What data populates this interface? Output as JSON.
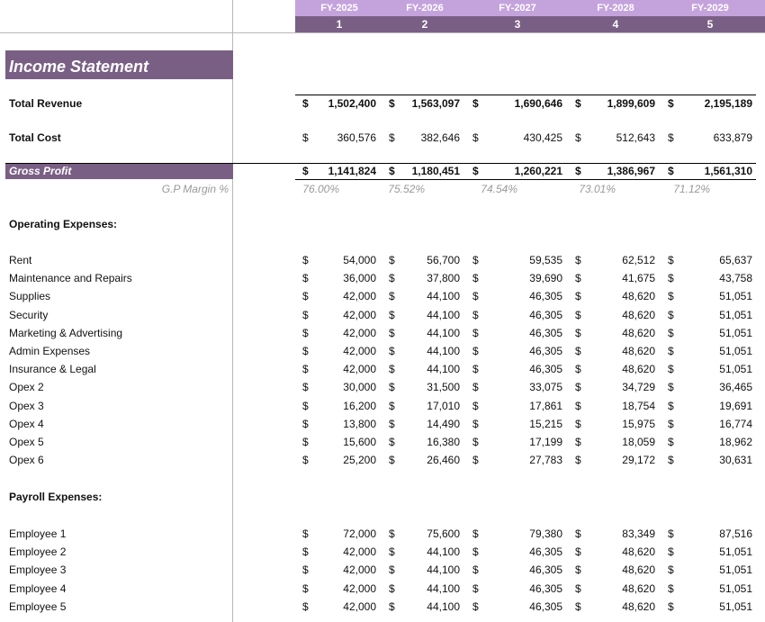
{
  "header": {
    "years": [
      "FY-2025",
      "FY-2026",
      "FY-2027",
      "FY-2028",
      "FY-2029"
    ],
    "periods": [
      "1",
      "2",
      "3",
      "4",
      "5"
    ]
  },
  "title": "Income Statement",
  "currency": "$",
  "total_revenue": {
    "label": "Total Revenue",
    "values": [
      "1,502,400",
      "1,563,097",
      "1,690,646",
      "1,899,609",
      "2,195,189"
    ]
  },
  "total_cost": {
    "label": "Total Cost",
    "values": [
      "360,576",
      "382,646",
      "430,425",
      "512,643",
      "633,879"
    ]
  },
  "gross_profit": {
    "label": "Gross Profit",
    "values": [
      "1,141,824",
      "1,180,451",
      "1,260,221",
      "1,386,967",
      "1,561,310"
    ]
  },
  "gp_margin": {
    "label": "G.P Margin %",
    "values": [
      "76.00%",
      "75.52%",
      "74.54%",
      "73.01%",
      "71.12%"
    ]
  },
  "operating_expenses": {
    "title": "Operating Expenses:",
    "rows": [
      {
        "label": "Rent",
        "values": [
          "54,000",
          "56,700",
          "59,535",
          "62,512",
          "65,637"
        ]
      },
      {
        "label": "Maintenance and Repairs",
        "values": [
          "36,000",
          "37,800",
          "39,690",
          "41,675",
          "43,758"
        ]
      },
      {
        "label": "Supplies",
        "values": [
          "42,000",
          "44,100",
          "46,305",
          "48,620",
          "51,051"
        ]
      },
      {
        "label": "Security",
        "values": [
          "42,000",
          "44,100",
          "46,305",
          "48,620",
          "51,051"
        ]
      },
      {
        "label": "Marketing & Advertising",
        "values": [
          "42,000",
          "44,100",
          "46,305",
          "48,620",
          "51,051"
        ]
      },
      {
        "label": "Admin Expenses",
        "values": [
          "42,000",
          "44,100",
          "46,305",
          "48,620",
          "51,051"
        ]
      },
      {
        "label": "Insurance & Legal",
        "values": [
          "42,000",
          "44,100",
          "46,305",
          "48,620",
          "51,051"
        ]
      },
      {
        "label": "Opex 2",
        "values": [
          "30,000",
          "31,500",
          "33,075",
          "34,729",
          "36,465"
        ]
      },
      {
        "label": "Opex 3",
        "values": [
          "16,200",
          "17,010",
          "17,861",
          "18,754",
          "19,691"
        ]
      },
      {
        "label": "Opex 4",
        "values": [
          "13,800",
          "14,490",
          "15,215",
          "15,975",
          "16,774"
        ]
      },
      {
        "label": "Opex 5",
        "values": [
          "15,600",
          "16,380",
          "17,199",
          "18,059",
          "18,962"
        ]
      },
      {
        "label": "Opex 6",
        "values": [
          "25,200",
          "26,460",
          "27,783",
          "29,172",
          "30,631"
        ]
      }
    ]
  },
  "payroll_expenses": {
    "title": "Payroll  Expenses:",
    "rows": [
      {
        "label": "Employee 1",
        "values": [
          "72,000",
          "75,600",
          "79,380",
          "83,349",
          "87,516"
        ]
      },
      {
        "label": "Employee 2",
        "values": [
          "42,000",
          "44,100",
          "46,305",
          "48,620",
          "51,051"
        ]
      },
      {
        "label": "Employee 3",
        "values": [
          "42,000",
          "44,100",
          "46,305",
          "48,620",
          "51,051"
        ]
      },
      {
        "label": "Employee 4",
        "values": [
          "42,000",
          "44,100",
          "46,305",
          "48,620",
          "51,051"
        ]
      },
      {
        "label": "Employee 5",
        "values": [
          "42,000",
          "44,100",
          "46,305",
          "48,620",
          "51,051"
        ]
      }
    ]
  }
}
